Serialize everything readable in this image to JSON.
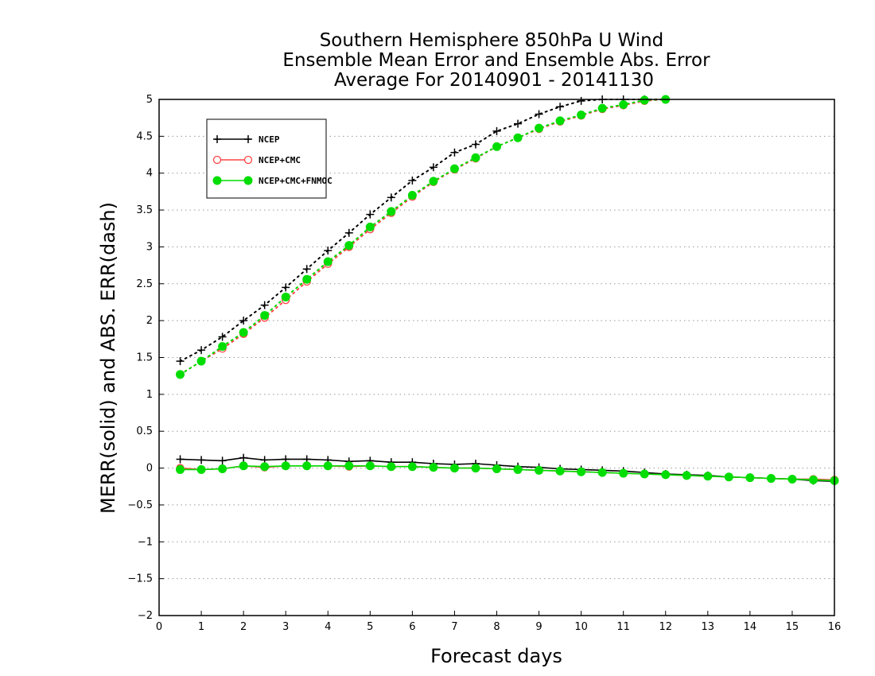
{
  "chart_data": {
    "type": "line",
    "title": [
      "Southern Hemisphere 850hPa U Wind",
      "Ensemble Mean Error and Ensemble Abs. Error",
      "Average For 20140901 - 20141130"
    ],
    "xlabel": "Forecast days",
    "ylabel": "MERR(solid) and ABS. ERR(dash)",
    "xlim": [
      0,
      16
    ],
    "ylim": [
      -2,
      5
    ],
    "x_ticks": [
      0,
      1,
      2,
      3,
      4,
      5,
      6,
      7,
      8,
      9,
      10,
      11,
      12,
      13,
      14,
      15,
      16
    ],
    "y_ticks": [
      -2,
      -1.5,
      -1,
      -0.5,
      0,
      0.5,
      1,
      1.5,
      2,
      2.5,
      3,
      3.5,
      4,
      4.5,
      5
    ],
    "y_tick_labels": [
      "−2",
      "−1.5",
      "−1",
      "−0.5",
      "0",
      "0.5",
      "1",
      "1.5",
      "2",
      "2.5",
      "3",
      "3.5",
      "4",
      "4.5",
      "5"
    ],
    "grid": "horizontal-dotted",
    "legend_position": "top-left",
    "x": [
      0.5,
      1,
      1.5,
      2,
      2.5,
      3,
      3.5,
      4,
      4.5,
      5,
      5.5,
      6,
      6.5,
      7,
      7.5,
      8,
      8.5,
      9,
      9.5,
      10,
      10.5,
      11,
      11.5,
      12,
      12.5,
      13,
      13.5,
      14,
      14.5,
      15,
      15.5,
      16
    ],
    "series": [
      {
        "name": "NCEP",
        "color": "#000000",
        "marker": "plus",
        "merr": [
          0.12,
          0.11,
          0.1,
          0.14,
          0.11,
          0.12,
          0.12,
          0.11,
          0.09,
          0.1,
          0.08,
          0.08,
          0.06,
          0.05,
          0.06,
          0.04,
          0.02,
          0.01,
          -0.01,
          -0.02,
          -0.03,
          -0.04,
          -0.06,
          -0.08,
          -0.09,
          -0.1,
          -0.12,
          -0.13,
          -0.14,
          -0.15,
          -0.17,
          -0.18
        ],
        "abs_err": [
          1.45,
          1.6,
          1.78,
          2.0,
          2.21,
          2.45,
          2.7,
          2.95,
          3.19,
          3.44,
          3.67,
          3.9,
          4.08,
          4.28,
          4.39,
          4.57,
          4.67,
          4.8,
          4.9,
          4.98,
          5.0,
          5.0,
          5.0,
          5.0,
          null,
          null,
          null,
          null,
          null,
          null,
          null,
          null
        ]
      },
      {
        "name": "NCEP+CMC",
        "color": "#ff4444",
        "marker": "open-circle",
        "merr": [
          0.0,
          -0.02,
          -0.01,
          0.03,
          0.01,
          0.03,
          0.03,
          0.03,
          0.02,
          0.03,
          0.02,
          0.02,
          0.01,
          0.0,
          0.0,
          -0.01,
          -0.02,
          -0.03,
          -0.04,
          -0.05,
          -0.06,
          -0.07,
          -0.08,
          -0.09,
          -0.1,
          -0.11,
          -0.12,
          -0.13,
          -0.14,
          -0.15,
          -0.15,
          -0.16
        ],
        "abs_err": [
          1.27,
          1.45,
          1.62,
          1.82,
          2.04,
          2.28,
          2.53,
          2.77,
          3.0,
          3.24,
          3.46,
          3.68,
          3.88,
          4.05,
          4.2,
          4.36,
          4.48,
          4.6,
          4.7,
          4.78,
          4.87,
          4.92,
          4.98,
          5.0,
          null,
          null,
          null,
          null,
          null,
          null,
          null,
          null
        ]
      },
      {
        "name": "NCEP+CMC+FNMOC",
        "color": "#00dd00",
        "marker": "filled-circle",
        "merr": [
          -0.02,
          -0.02,
          -0.01,
          0.03,
          0.02,
          0.03,
          0.03,
          0.03,
          0.03,
          0.03,
          0.02,
          0.02,
          0.01,
          0.0,
          0.0,
          -0.01,
          -0.02,
          -0.03,
          -0.04,
          -0.05,
          -0.06,
          -0.07,
          -0.08,
          -0.09,
          -0.1,
          -0.11,
          -0.12,
          -0.13,
          -0.14,
          -0.15,
          -0.16,
          -0.17
        ],
        "abs_err": [
          1.27,
          1.45,
          1.65,
          1.84,
          2.07,
          2.32,
          2.56,
          2.8,
          3.02,
          3.27,
          3.48,
          3.7,
          3.89,
          4.06,
          4.21,
          4.36,
          4.48,
          4.61,
          4.71,
          4.79,
          4.88,
          4.93,
          4.99,
          5.0,
          null,
          null,
          null,
          null,
          null,
          null,
          null,
          null
        ]
      }
    ]
  }
}
